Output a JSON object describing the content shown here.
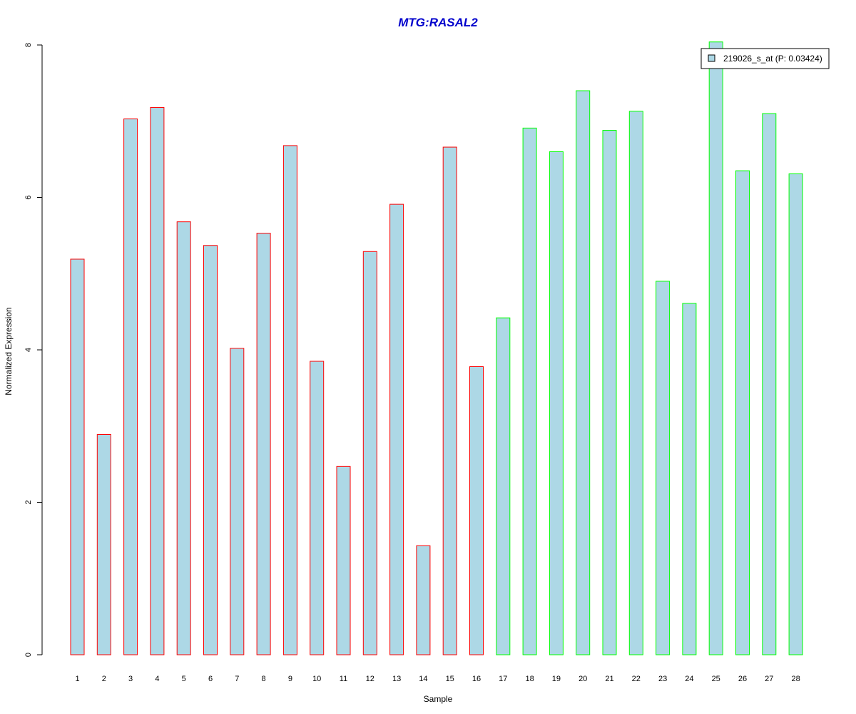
{
  "chart_data": {
    "type": "bar",
    "title": "MTG:RASAL2",
    "xlabel": "Sample",
    "ylabel": "Normalized Expression",
    "categories": [
      "1",
      "2",
      "3",
      "4",
      "5",
      "6",
      "7",
      "8",
      "9",
      "10",
      "11",
      "12",
      "13",
      "14",
      "15",
      "16",
      "17",
      "18",
      "19",
      "20",
      "21",
      "22",
      "23",
      "24",
      "25",
      "26",
      "27",
      "28"
    ],
    "series": [
      {
        "name": "219026_s_at (P: 0.03424)",
        "values": [
          5.19,
          2.89,
          7.03,
          7.18,
          5.68,
          5.37,
          4.02,
          5.53,
          6.68,
          3.85,
          2.47,
          5.29,
          5.91,
          1.43,
          6.66,
          3.78,
          4.42,
          6.91,
          6.6,
          7.4,
          6.88,
          7.13,
          4.9,
          4.61,
          8.04,
          6.35,
          7.1,
          6.31
        ]
      }
    ],
    "ylim": [
      0,
      8
    ],
    "yticks": [
      "0",
      "2",
      "4",
      "6",
      "8"
    ],
    "grid": false,
    "legend_position": "top-right",
    "colors": {
      "fill": "#add8e6",
      "group1_border": "#ff0000",
      "group2_border": "#00ff00",
      "title": "#0000cc"
    },
    "group_sizes": [
      16,
      12
    ]
  }
}
